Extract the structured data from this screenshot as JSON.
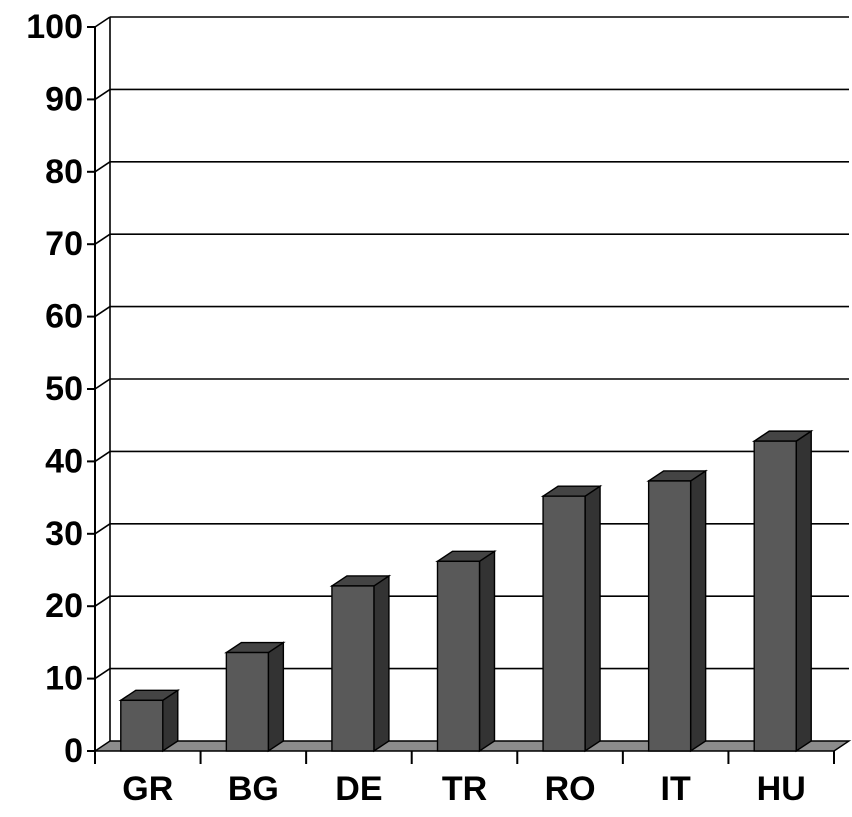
{
  "chart_data": {
    "type": "bar",
    "style": "3d-column",
    "categories": [
      "GR",
      "BG",
      "DE",
      "TR",
      "RO",
      "IT",
      "HU"
    ],
    "values": [
      7,
      13.6,
      22.8,
      26.2,
      35.2,
      37.3,
      42.8
    ],
    "title": "",
    "xlabel": "",
    "ylabel": "",
    "ylim": [
      0,
      100
    ],
    "yticks": [
      0,
      10,
      20,
      30,
      40,
      50,
      60,
      70,
      80,
      90,
      100
    ],
    "grid": true,
    "legend": "none",
    "colors": {
      "bar_front": "#595959",
      "bar_top": "#444444",
      "bar_side": "#333333",
      "floor": "#8c8c8c",
      "gridline": "#000000",
      "text": "#000000"
    }
  }
}
